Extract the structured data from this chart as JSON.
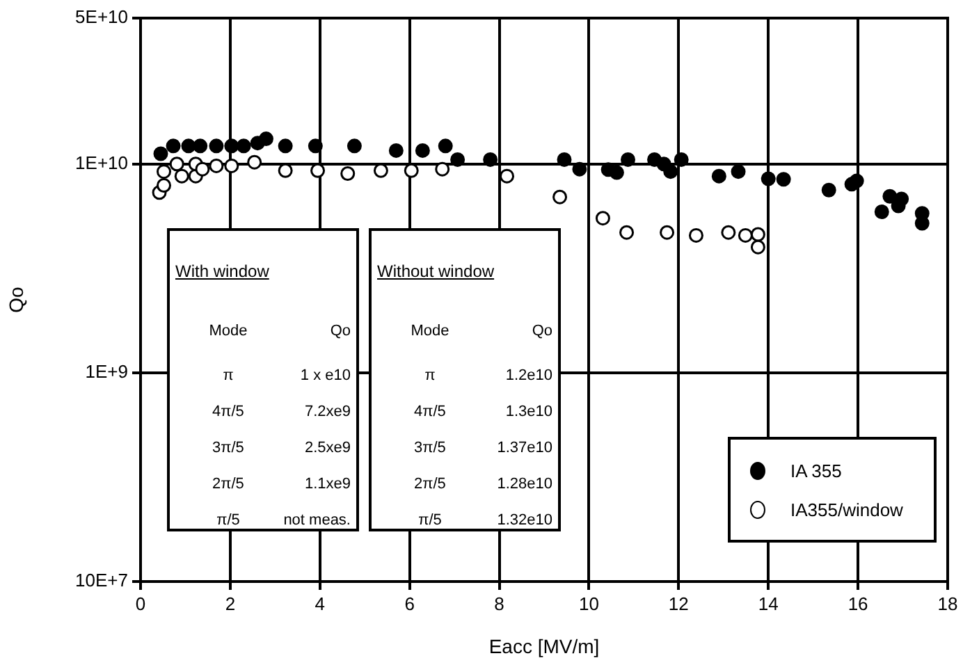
{
  "chart_data": {
    "type": "scatter",
    "xlabel": "Eacc [MV/m]",
    "ylabel": "Qo",
    "xlim": [
      0,
      18
    ],
    "xticks": [
      0,
      2,
      4,
      6,
      8,
      10,
      12,
      14,
      16,
      18
    ],
    "ylim": [
      100000000,
      50000000000
    ],
    "yticks": [
      {
        "value": 100000000,
        "label": "10E+7"
      },
      {
        "value": 1000000000,
        "label": "1E+9"
      },
      {
        "value": 10000000000,
        "label": "1E+10"
      },
      {
        "value": 50000000000,
        "label": "5E+10"
      }
    ],
    "log": "y",
    "grid": true,
    "legend": "bottom right",
    "marker": "circle",
    "series": [
      {
        "name": "IA 355",
        "color": "#000000",
        "x": [
          0.45,
          0.73,
          1.07,
          1.33,
          1.69,
          2.03,
          2.3,
          2.61,
          2.8,
          3.23,
          3.9,
          4.77,
          5.7,
          6.29,
          6.8,
          7.07,
          7.8,
          9.45,
          9.79,
          10.43,
          10.62,
          10.87,
          11.46,
          11.67,
          11.82,
          12.06,
          12.9,
          13.33,
          14.0,
          14.34,
          15.35,
          15.86,
          15.97,
          16.53,
          16.71,
          16.9,
          16.97,
          17.43,
          17.43
        ],
        "values": [
          11200000000,
          12200000000,
          12200000000,
          12200000000,
          12200000000,
          12200000000,
          12200000000,
          12600000000,
          13200000000,
          12200000000,
          12200000000,
          12200000000,
          11600000000,
          11600000000,
          12200000000,
          10500000000,
          10500000000,
          10500000000,
          9450000000,
          9400000000,
          9100000000,
          10500000000,
          10500000000,
          10000000000,
          9200000000,
          10500000000,
          8750000000,
          9200000000,
          8500000000,
          8450000000,
          7500000000,
          8000000000,
          8300000000,
          5900000000,
          7000000000,
          6300000000,
          6800000000,
          5800000000,
          5200000000
        ]
      },
      {
        "name": "IA355/window",
        "color": "#ffffff",
        "x": [
          0.42,
          0.52,
          0.52,
          0.81,
          0.92,
          1.23,
          1.23,
          1.38,
          1.69,
          2.03,
          2.54,
          3.23,
          3.95,
          4.62,
          5.36,
          6.04,
          6.73,
          8.17,
          9.35,
          10.31,
          10.84,
          11.74,
          12.39,
          13.11,
          13.49,
          13.77,
          13.77
        ],
        "values": [
          7300000000,
          7900000000,
          9200000000,
          10000000000,
          8750000000,
          8750000000,
          10000000000,
          9450000000,
          9800000000,
          9800000000,
          10200000000,
          9300000000,
          9300000000,
          9000000000,
          9300000000,
          9300000000,
          9450000000,
          8750000000,
          6950000000,
          5500000000,
          4700000000,
          4700000000,
          4550000000,
          4700000000,
          4550000000,
          4600000000,
          4000000000
        ]
      }
    ],
    "annotations": [
      "With window",
      "Mode",
      "Qo",
      "π",
      "1 x e10",
      "4π/5",
      "7.2xe9",
      "3π/5",
      "2.5xe9",
      "2π/5",
      "1.1xe9",
      "π/5",
      "not meas.",
      "Without window",
      "Mode",
      "Qo",
      "π",
      "1.2e10",
      "4π/5",
      "1.3e10",
      "3π/5",
      "1.37e10",
      "2π/5",
      "1.28e10",
      "π/5",
      "1.32e10"
    ]
  }
}
